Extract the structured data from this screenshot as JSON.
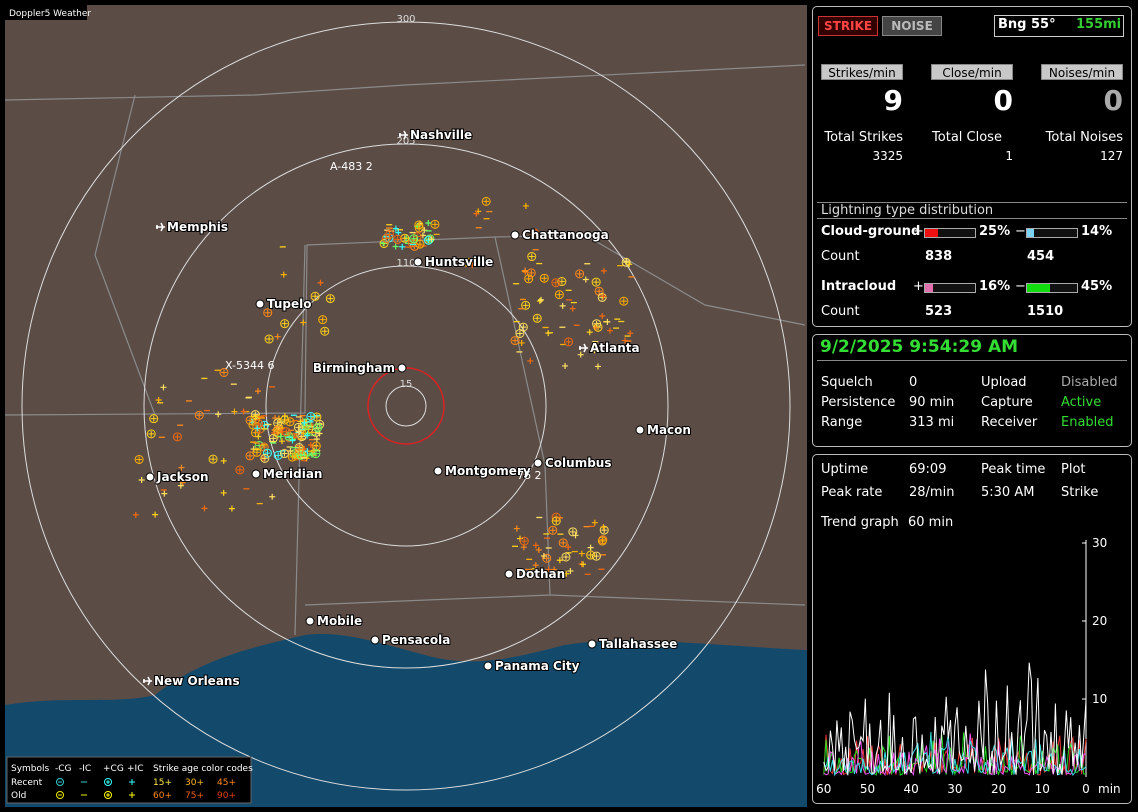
{
  "app_title": "Doppler5 Weather",
  "map": {
    "range_rings": [
      "300",
      "205",
      "110",
      "15"
    ],
    "cities": [
      "Nashville",
      "Memphis",
      "Chattanooga",
      "Huntsville",
      "Tupelo",
      "Atlanta",
      "Birmingham",
      "Macon",
      "Columbus",
      "Montgomery",
      "Meridian",
      "Jackson",
      "Dothan",
      "Mobile",
      "Pensacola",
      "Tallahassee",
      "Panama City",
      "New Orleans"
    ],
    "strike_tags": [
      "A-483 2",
      "X-5344 6",
      "76 2"
    ]
  },
  "legend": {
    "symbols_label": "Symbols",
    "symbol_types": [
      "-CG",
      "-IC",
      "+CG",
      "+IC"
    ],
    "age_title": "Strike age color codes",
    "rows": [
      {
        "label": "Recent",
        "ages": [
          "15+",
          "30+",
          "45+"
        ]
      },
      {
        "label": "Old",
        "ages": [
          "60+",
          "75+",
          "90+"
        ]
      }
    ]
  },
  "status": {
    "strike_button": "STRIKE",
    "noise_button": "NOISE",
    "bearing": "Bng 55°",
    "distance": "155mi"
  },
  "rates": [
    {
      "label": "Strikes/min",
      "value": 9
    },
    {
      "label": "Close/min",
      "value": 0
    },
    {
      "label": "Noises/min",
      "value": 0
    }
  ],
  "totals": [
    {
      "label": "Total Strikes",
      "value": 3325
    },
    {
      "label": "Total Close",
      "value": 1
    },
    {
      "label": "Total Noises",
      "value": 127
    }
  ],
  "distribution": {
    "title": "Lightning type distribution",
    "count_label": "Count",
    "types": [
      {
        "name": "Cloud-ground",
        "positive": {
          "sign": "+",
          "percent": {
            "value": 25,
            "label": "25%"
          },
          "count": 838
        },
        "negative": {
          "sign": "−",
          "percent": {
            "value": 14,
            "label": "14%"
          },
          "count": 454
        }
      },
      {
        "name": "Intracloud",
        "positive": {
          "sign": "+",
          "percent": {
            "value": 16,
            "label": "16%"
          },
          "count": 523
        },
        "negative": {
          "sign": "−",
          "percent": {
            "value": 45,
            "label": "45%"
          },
          "count": 1510
        }
      }
    ]
  },
  "datetime": "9/2/2025 9:54:29 AM",
  "settings": [
    [
      "Squelch",
      "0",
      "Upload",
      "Disabled"
    ],
    [
      "Persistence",
      "90 min",
      "Capture",
      "Active"
    ],
    [
      "Range",
      "313 mi",
      "Receiver",
      "Enabled"
    ]
  ],
  "stats": [
    [
      "Uptime",
      "69:09",
      "Peak time",
      "Plot"
    ],
    [
      "Peak rate",
      "28/min",
      "5:30 AM",
      "Strike"
    ]
  ],
  "trend": {
    "label": "Trend graph",
    "window": "60 min",
    "yticks": [
      30,
      20,
      10
    ],
    "xticks": [
      60,
      50,
      40,
      30,
      20,
      10,
      0
    ],
    "x_unit": "min"
  }
}
